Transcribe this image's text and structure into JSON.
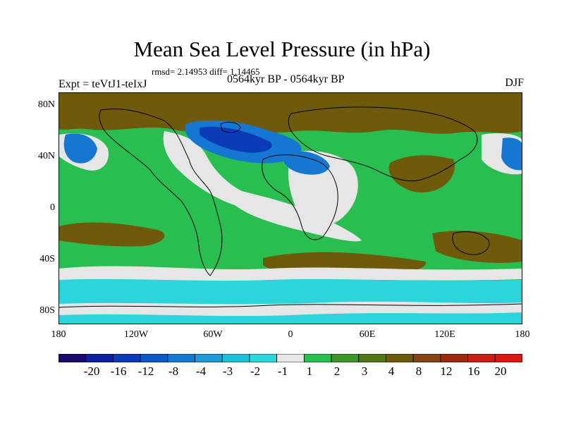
{
  "title": "Mean Sea Level Pressure (in hPa)",
  "stats_line": "rmsd= 2.14953 diff= 1.14465",
  "experiment": "Expt = teVtJ1-teIxJ",
  "period": "0564kyr BP - 0564kyr BP",
  "season": "DJF",
  "lat_labels": [
    "80N",
    "40N",
    "0",
    "40S",
    "80S"
  ],
  "lon_labels": [
    "180",
    "120W",
    "60W",
    "0",
    "60E",
    "120E",
    "180"
  ],
  "colorbar": {
    "labels": [
      "-20",
      "-16",
      "-12",
      "-8",
      "-4",
      "-3",
      "-2",
      "-1",
      "1",
      "2",
      "3",
      "4",
      "8",
      "12",
      "16",
      "20"
    ],
    "colors": [
      "#1a0a6e",
      "#0d1e9e",
      "#0a3cb8",
      "#0a5ac8",
      "#1478d2",
      "#1e9ad8",
      "#1ebedc",
      "#2ad6dc",
      "#e6e6e6",
      "#28be50",
      "#3c9628",
      "#507814",
      "#6e5a0a",
      "#874314",
      "#a0280f",
      "#c81e14",
      "#dc1414"
    ]
  },
  "map": {
    "ocean_color": "#28be50",
    "land_color": "#e6e6e6",
    "north_color": "#6e5a0a",
    "low_color": "#1478d2",
    "deep_low_color": "#0a3cb8",
    "antarctic_color": "#2ad6dc",
    "coast_color": "#000000"
  }
}
